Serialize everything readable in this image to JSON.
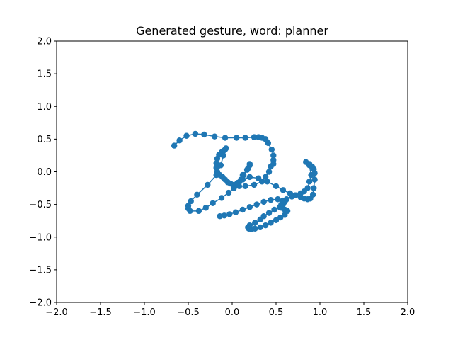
{
  "chart_data": {
    "type": "line",
    "title": "Generated gesture, word: planner",
    "xlabel": "",
    "ylabel": "",
    "xlim": [
      -2.0,
      2.0
    ],
    "ylim": [
      -2.0,
      2.0
    ],
    "xticks": [
      "−2.0",
      "−1.5",
      "−1.0",
      "−0.5",
      "0.0",
      "0.5",
      "1.0",
      "1.5",
      "2.0"
    ],
    "yticks": [
      "−2.0",
      "−1.5",
      "−1.0",
      "−0.5",
      "0.0",
      "0.5",
      "1.0",
      "1.5",
      "2.0"
    ],
    "grid": false,
    "marker": "circle",
    "series_color": "#1f77b4",
    "series": [
      {
        "x": [
          -0.66,
          -0.6,
          -0.52,
          -0.42,
          -0.32,
          -0.2,
          -0.08,
          0.05,
          0.15,
          0.25,
          0.3,
          0.34,
          0.38,
          0.41,
          0.45,
          0.47,
          0.47,
          0.47,
          0.44,
          0.42,
          0.38,
          0.34,
          0.25,
          0.15,
          0.08,
          0.02,
          -0.02,
          -0.05,
          -0.08,
          -0.11,
          -0.14,
          -0.17,
          -0.18,
          -0.18,
          -0.17,
          -0.15,
          -0.12,
          -0.1,
          -0.08,
          -0.07,
          -0.1,
          -0.13,
          -0.18,
          -0.28,
          -0.4,
          -0.47,
          -0.5,
          -0.5,
          -0.48,
          -0.38,
          -0.3,
          -0.22,
          -0.12,
          -0.04,
          0.02,
          0.06,
          0.12,
          0.18,
          0.2,
          0.2,
          0.17,
          0.13,
          0.1,
          0.08,
          0.12,
          0.2,
          0.3,
          0.4,
          0.5,
          0.58,
          0.66,
          0.72,
          0.78,
          0.82,
          0.86,
          0.89,
          0.92,
          0.93,
          0.94,
          0.94,
          0.93,
          0.91,
          0.88,
          0.84,
          0.88,
          0.9,
          0.88,
          0.86,
          0.82,
          0.78,
          0.72,
          0.68,
          0.62,
          0.58,
          0.56,
          0.56,
          0.6,
          0.63,
          0.6,
          0.55,
          0.5,
          0.44,
          0.38,
          0.32,
          0.26,
          0.22,
          0.19,
          0.18,
          0.2,
          0.26,
          0.32,
          0.36,
          0.42,
          0.48,
          0.54,
          0.58,
          0.6,
          0.58,
          0.52,
          0.44,
          0.36,
          0.28,
          0.2,
          0.12,
          0.04,
          -0.03,
          -0.09,
          -0.14
        ],
        "y": [
          0.4,
          0.48,
          0.55,
          0.58,
          0.57,
          0.54,
          0.52,
          0.52,
          0.52,
          0.53,
          0.53,
          0.52,
          0.5,
          0.44,
          0.34,
          0.25,
          0.18,
          0.12,
          0.08,
          0.0,
          -0.08,
          -0.15,
          -0.2,
          -0.22,
          -0.22,
          -0.2,
          -0.18,
          -0.16,
          -0.12,
          -0.08,
          -0.05,
          0.0,
          0.06,
          0.13,
          0.2,
          0.26,
          0.3,
          0.32,
          0.34,
          0.36,
          0.25,
          0.1,
          -0.05,
          -0.2,
          -0.35,
          -0.45,
          -0.52,
          -0.56,
          -0.6,
          -0.6,
          -0.55,
          -0.48,
          -0.4,
          -0.32,
          -0.25,
          -0.17,
          -0.05,
          0.05,
          0.1,
          0.12,
          0.03,
          -0.05,
          -0.12,
          -0.16,
          -0.12,
          -0.08,
          -0.1,
          -0.15,
          -0.22,
          -0.28,
          -0.33,
          -0.36,
          -0.39,
          -0.41,
          -0.42,
          -0.41,
          -0.35,
          -0.25,
          -0.12,
          -0.02,
          0.04,
          0.08,
          0.12,
          0.15,
          0.1,
          -0.05,
          -0.15,
          -0.25,
          -0.3,
          -0.33,
          -0.36,
          -0.38,
          -0.42,
          -0.46,
          -0.5,
          -0.55,
          -0.58,
          -0.6,
          -0.66,
          -0.7,
          -0.74,
          -0.78,
          -0.82,
          -0.85,
          -0.87,
          -0.88,
          -0.87,
          -0.85,
          -0.82,
          -0.78,
          -0.73,
          -0.68,
          -0.63,
          -0.58,
          -0.54,
          -0.5,
          -0.46,
          -0.44,
          -0.42,
          -0.43,
          -0.46,
          -0.5,
          -0.54,
          -0.58,
          -0.62,
          -0.65,
          -0.67,
          -0.68
        ]
      }
    ]
  }
}
